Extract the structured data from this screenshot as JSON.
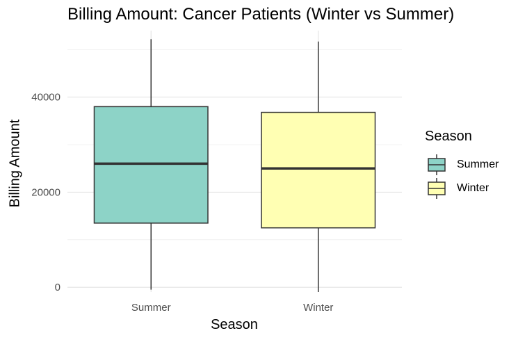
{
  "chart_data": {
    "type": "boxplot",
    "title": "Billing Amount: Cancer Patients (Winter vs Summer)",
    "xlabel": "Season",
    "ylabel": "Billing Amount",
    "categories": [
      "Summer",
      "Winter"
    ],
    "ylim": [
      -1000,
      54000
    ],
    "y_ticks": [
      0,
      20000,
      40000
    ],
    "y_tick_labels": [
      "0",
      "20000",
      "40000"
    ],
    "grid": true,
    "legend": {
      "title": "Season",
      "position": "right",
      "entries": [
        "Summer",
        "Winter"
      ]
    },
    "series": [
      {
        "name": "Summer",
        "color": "#8DD3C7",
        "min": -500,
        "q1": 13500,
        "median": 26000,
        "q3": 38000,
        "max": 52200
      },
      {
        "name": "Winter",
        "color": "#FFFFB3",
        "min": -1000,
        "q1": 12500,
        "median": 25000,
        "q3": 36800,
        "max": 51700
      }
    ]
  }
}
